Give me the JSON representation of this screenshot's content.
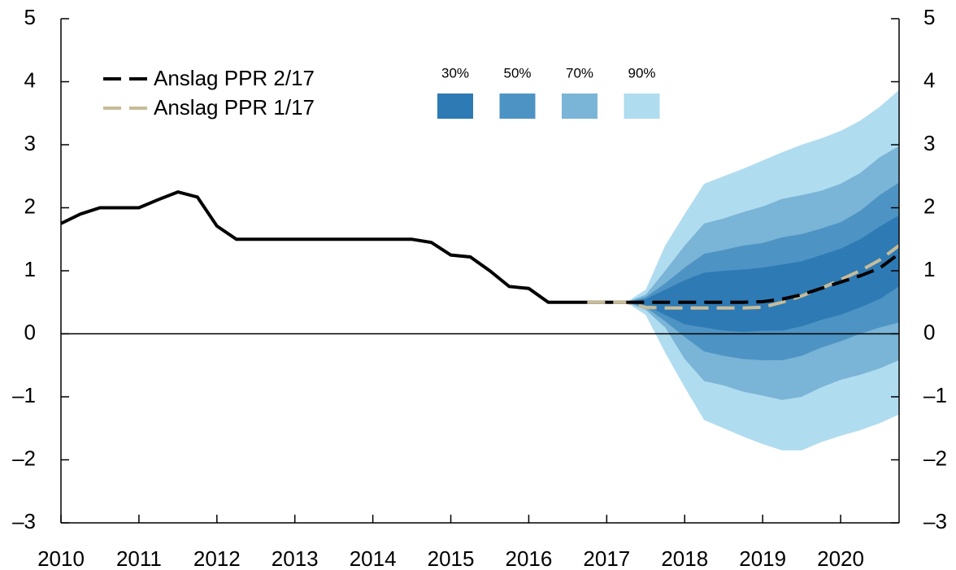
{
  "chart_data": {
    "type": "fan",
    "x": [
      2010,
      2010.25,
      2010.5,
      2010.75,
      2011,
      2011.25,
      2011.5,
      2011.75,
      2012,
      2012.25,
      2012.5,
      2012.75,
      2013,
      2013.25,
      2013.5,
      2013.75,
      2014,
      2014.25,
      2014.5,
      2014.75,
      2015,
      2015.25,
      2015.5,
      2015.75,
      2016,
      2016.25,
      2016.5,
      2016.75,
      2017,
      2017.25,
      2017.5,
      2017.75,
      2018,
      2018.25,
      2018.5,
      2018.75,
      2019,
      2019.25,
      2019.5,
      2019.75,
      2020,
      2020.25,
      2020.5,
      2020.75
    ],
    "series": [
      {
        "color": "#000000",
        "dashed": false,
        "values": [
          1.75,
          1.9,
          2.0,
          2.0,
          2.0,
          2.13,
          2.25,
          2.17,
          1.71,
          1.5,
          1.5,
          1.5,
          1.5,
          1.5,
          1.5,
          1.5,
          1.5,
          1.5,
          1.5,
          1.45,
          1.25,
          1.22,
          1.0,
          0.75,
          0.72,
          0.5,
          0.5,
          0.5,
          0.5,
          0.5,
          null,
          null,
          null,
          null,
          null,
          null,
          null,
          null,
          null,
          null,
          null,
          null,
          null,
          null
        ]
      },
      {
        "name": "Anslag PPR 1/17",
        "color": "#c8bc98",
        "dashed": true,
        "values": [
          null,
          null,
          null,
          null,
          null,
          null,
          null,
          null,
          null,
          null,
          null,
          null,
          null,
          null,
          null,
          null,
          null,
          null,
          null,
          null,
          null,
          null,
          null,
          null,
          null,
          null,
          null,
          0.5,
          0.5,
          0.5,
          0.42,
          0.41,
          0.41,
          0.41,
          0.41,
          0.41,
          0.42,
          0.5,
          0.6,
          0.72,
          0.86,
          1.0,
          1.17,
          1.4
        ]
      },
      {
        "name": "Anslag PPR 2/17",
        "color": "#000000",
        "dashed": true,
        "values": [
          null,
          null,
          null,
          null,
          null,
          null,
          null,
          null,
          null,
          null,
          null,
          null,
          null,
          null,
          null,
          null,
          null,
          null,
          null,
          null,
          null,
          null,
          null,
          null,
          null,
          null,
          null,
          null,
          null,
          0.5,
          0.5,
          0.5,
          0.5,
          0.5,
          0.5,
          0.5,
          0.51,
          0.55,
          0.62,
          0.72,
          0.82,
          0.92,
          1.04,
          1.27
        ]
      }
    ],
    "fan": {
      "x": [
        2017.25,
        2017.5,
        2017.75,
        2018,
        2018.25,
        2018.5,
        2018.75,
        2019,
        2019.25,
        2019.5,
        2019.75,
        2020,
        2020.25,
        2020.5,
        2020.75
      ],
      "bands": [
        {
          "name": "90%",
          "color": "#b0dcf0",
          "upper": [
            0.5,
            0.7,
            1.4,
            1.9,
            2.38,
            2.5,
            2.62,
            2.75,
            2.88,
            3.0,
            3.1,
            3.22,
            3.38,
            3.6,
            3.87
          ],
          "lower": [
            0.5,
            0.3,
            -0.3,
            -0.85,
            -1.37,
            -1.5,
            -1.63,
            -1.75,
            -1.85,
            -1.85,
            -1.72,
            -1.62,
            -1.53,
            -1.42,
            -1.28
          ]
        },
        {
          "name": "70%",
          "color": "#7ab4d6",
          "upper": [
            0.5,
            0.62,
            1.0,
            1.4,
            1.75,
            1.83,
            1.93,
            2.02,
            2.14,
            2.2,
            2.27,
            2.38,
            2.55,
            2.8,
            2.98
          ],
          "lower": [
            0.5,
            0.38,
            0.1,
            -0.4,
            -0.75,
            -0.82,
            -0.92,
            -0.98,
            -1.05,
            -1.0,
            -0.85,
            -0.73,
            -0.65,
            -0.55,
            -0.42
          ]
        },
        {
          "name": "50%",
          "color": "#4d94c4",
          "upper": [
            0.5,
            0.58,
            0.8,
            1.05,
            1.27,
            1.33,
            1.4,
            1.44,
            1.53,
            1.58,
            1.67,
            1.77,
            1.95,
            2.2,
            2.4
          ],
          "lower": [
            0.5,
            0.42,
            0.2,
            -0.05,
            -0.28,
            -0.35,
            -0.4,
            -0.42,
            -0.42,
            -0.35,
            -0.22,
            -0.12,
            0.0,
            0.1,
            0.18
          ]
        },
        {
          "name": "30%",
          "color": "#2e7ab5",
          "upper": [
            0.5,
            0.55,
            0.7,
            0.85,
            0.97,
            1.0,
            1.02,
            1.05,
            1.1,
            1.15,
            1.25,
            1.35,
            1.5,
            1.7,
            1.88
          ],
          "lower": [
            0.5,
            0.45,
            0.3,
            0.15,
            0.1,
            0.05,
            0.03,
            0.05,
            0.05,
            0.12,
            0.22,
            0.3,
            0.42,
            0.55,
            0.75
          ]
        }
      ]
    },
    "xlim": [
      2010,
      2020.75
    ],
    "xticks": [
      2010,
      2011,
      2012,
      2013,
      2014,
      2015,
      2016,
      2017,
      2018,
      2019,
      2020
    ],
    "ylim": [
      -3,
      5
    ],
    "yticks": [
      {
        "value": -3,
        "label": "–3"
      },
      {
        "value": -2,
        "label": "–2"
      },
      {
        "value": -1,
        "label": "–1"
      },
      0,
      1,
      2,
      3,
      4,
      5
    ],
    "grid": false
  }
}
